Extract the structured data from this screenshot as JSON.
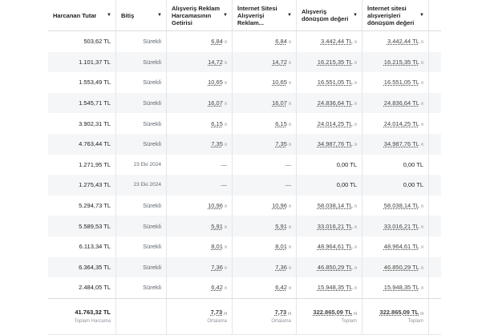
{
  "headers": [
    {
      "label": "Harcanan Tutar"
    },
    {
      "label": "Bitiş"
    },
    {
      "label": "Alışveriş Reklam Harcamasının Getirisi"
    },
    {
      "label": "İnternet Sitesi Alışverişi Reklam..."
    },
    {
      "label": "Alışveriş dönüşüm değeri"
    },
    {
      "label": "İnternet sitesi alışverişleri dönüşüm değeri"
    }
  ],
  "rows": [
    {
      "spent": "503,62 TL",
      "end": "Sürekli",
      "roas": "6,84",
      "web_roas": "6,84",
      "value": "3.442,44 TL",
      "web_value": "3.442,44 TL"
    },
    {
      "spent": "1.101,37 TL",
      "end": "Sürekli",
      "roas": "14,72",
      "web_roas": "14,72",
      "value": "16.215,35 TL",
      "web_value": "16.215,35 TL"
    },
    {
      "spent": "1.553,49 TL",
      "end": "Sürekli",
      "roas": "10,65",
      "web_roas": "10,65",
      "value": "16.551,05 TL",
      "web_value": "16.551,05 TL"
    },
    {
      "spent": "1.545,71 TL",
      "end": "Sürekli",
      "roas": "16,07",
      "web_roas": "16,07",
      "value": "24.836,64 TL",
      "web_value": "24.836,64 TL"
    },
    {
      "spent": "3.902,31 TL",
      "end": "Sürekli",
      "roas": "6,15",
      "web_roas": "6,15",
      "value": "24.014,25 TL",
      "web_value": "24.014,25 TL"
    },
    {
      "spent": "4.763,44 TL",
      "end": "Sürekli",
      "roas": "7,35",
      "web_roas": "7,35",
      "value": "34.987,76 TL",
      "web_value": "34.987,76 TL"
    },
    {
      "spent": "1.271,95 TL",
      "end": "23 Eki 2024",
      "roas": "—",
      "web_roas": "—",
      "value": "0,00 TL",
      "web_value": "0,00 TL"
    },
    {
      "spent": "1.275,43 TL",
      "end": "23 Eki 2024",
      "roas": "—",
      "web_roas": "—",
      "value": "0,00 TL",
      "web_value": "0,00 TL"
    },
    {
      "spent": "5.294,73 TL",
      "end": "Sürekli",
      "roas": "10,96",
      "web_roas": "10,96",
      "value": "58.038,14 TL",
      "web_value": "58.038,14 TL"
    },
    {
      "spent": "5.589,53 TL",
      "end": "Sürekli",
      "roas": "5,91",
      "web_roas": "5,91",
      "value": "33.016,21 TL",
      "web_value": "33.016,21 TL"
    },
    {
      "spent": "6.113,34 TL",
      "end": "Sürekli",
      "roas": "8,01",
      "web_roas": "8,01",
      "value": "48.964,61 TL",
      "web_value": "48.964,61 TL"
    },
    {
      "spent": "6.364,35 TL",
      "end": "Sürekli",
      "roas": "7,36",
      "web_roas": "7,36",
      "value": "46.850,29 TL",
      "web_value": "46.850,29 TL"
    },
    {
      "spent": "2.484,05 TL",
      "end": "Sürekli",
      "roas": "6,42",
      "web_roas": "6,42",
      "value": "15.948,35 TL",
      "web_value": "15.948,35 TL"
    }
  ],
  "footer": {
    "spent": {
      "value": "41.763,32 TL",
      "label": "Toplam Harcama"
    },
    "roas": {
      "value": "7,73",
      "label": "Ortalama"
    },
    "web_roas": {
      "value": "7,73",
      "label": "Ortalama"
    },
    "value": {
      "value": "322.865,09 TL",
      "label": "Toplam"
    },
    "web_value": {
      "value": "322.865,09 TL",
      "label": "Toplam"
    }
  }
}
